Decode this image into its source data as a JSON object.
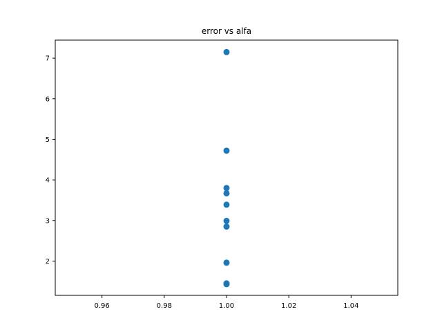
{
  "chart_data": {
    "type": "scatter",
    "title": "error vs alfa",
    "xlabel": "",
    "ylabel": "",
    "xlim": [
      0.945,
      1.055
    ],
    "ylim": [
      1.155,
      7.445
    ],
    "x_ticks": [
      0.96,
      0.98,
      1.0,
      1.02,
      1.04
    ],
    "x_tick_labels": [
      "0.96",
      "0.98",
      "1.00",
      "1.02",
      "1.04"
    ],
    "y_ticks": [
      2,
      3,
      4,
      5,
      6,
      7
    ],
    "y_tick_labels": [
      "2",
      "3",
      "4",
      "5",
      "6",
      "7"
    ],
    "grid": false,
    "series": [
      {
        "color": "#1f77b4",
        "points": [
          {
            "x": 1.0,
            "y": 7.15
          },
          {
            "x": 1.0,
            "y": 4.72
          },
          {
            "x": 1.0,
            "y": 3.8
          },
          {
            "x": 1.0,
            "y": 3.67
          },
          {
            "x": 1.0,
            "y": 3.39
          },
          {
            "x": 1.0,
            "y": 2.99
          },
          {
            "x": 1.0,
            "y": 2.85
          },
          {
            "x": 1.0,
            "y": 1.96
          },
          {
            "x": 1.0,
            "y": 1.45
          },
          {
            "x": 1.0,
            "y": 1.43
          }
        ]
      }
    ]
  }
}
